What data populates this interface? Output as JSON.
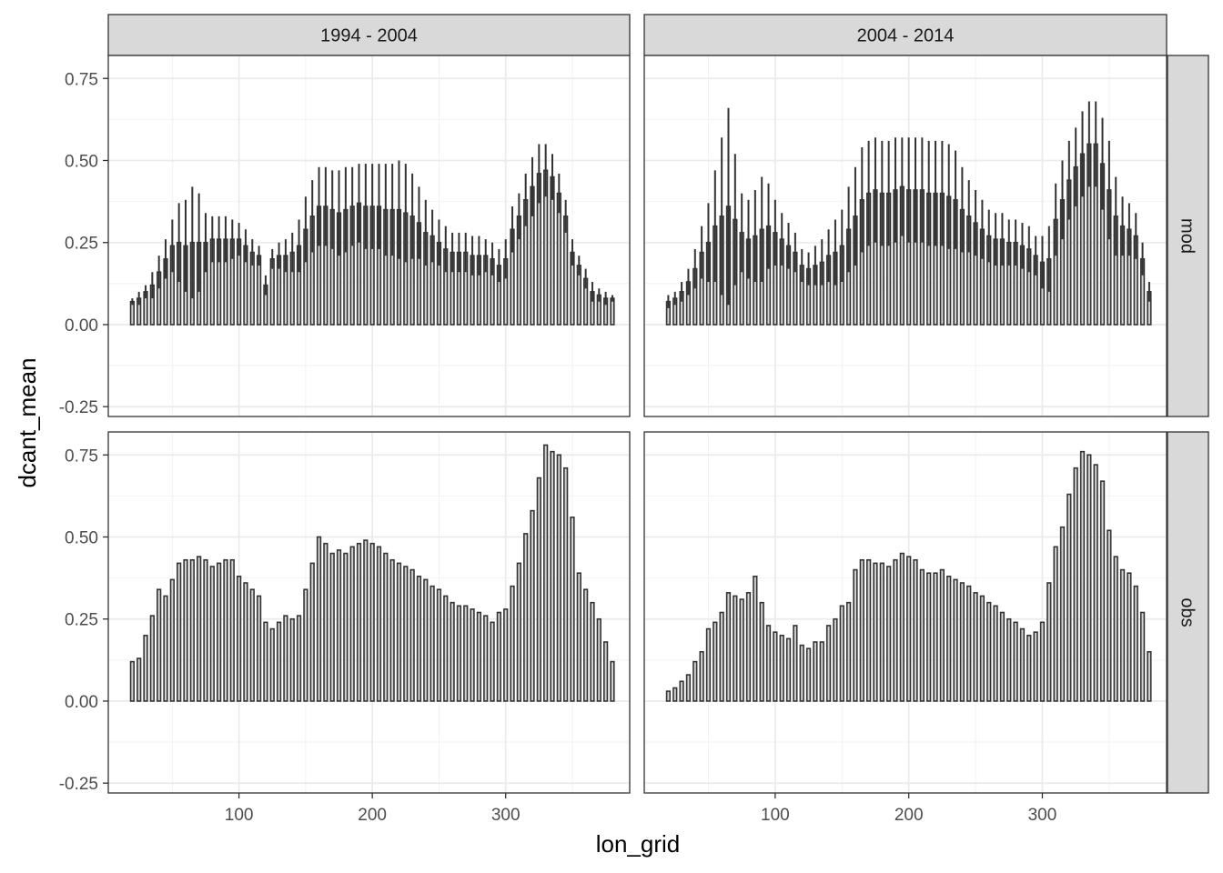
{
  "chart_data": {
    "type": "bar",
    "layout": "facet_grid",
    "xlabel": "lon_grid",
    "ylabel": "dcant_mean",
    "ylim": [
      -0.28,
      0.82
    ],
    "xlim": [
      2,
      393
    ],
    "x_ticks": [
      100,
      200,
      300
    ],
    "x_tick_labels": [
      "100",
      "200",
      "300"
    ],
    "y_ticks": [
      -0.25,
      0,
      0.25,
      0.5,
      0.75
    ],
    "y_tick_labels": [
      "-0.25",
      "0.00",
      "0.25",
      "0.50",
      "0.75"
    ],
    "grid": true,
    "bar_fill": "#d3d3d3",
    "bar_outline": "#333333",
    "strip_fill": "#d9d9d9",
    "column_facets": [
      "1994 - 2004",
      "2004 - 2014"
    ],
    "row_facets": [
      "mod",
      "obs"
    ],
    "x": [
      20,
      25,
      30,
      35,
      40,
      45,
      50,
      55,
      60,
      65,
      70,
      75,
      80,
      85,
      90,
      95,
      100,
      105,
      110,
      115,
      120,
      125,
      130,
      135,
      140,
      145,
      150,
      155,
      160,
      165,
      170,
      175,
      180,
      185,
      190,
      195,
      200,
      205,
      210,
      215,
      220,
      225,
      230,
      235,
      240,
      245,
      250,
      255,
      260,
      265,
      270,
      275,
      280,
      285,
      290,
      295,
      300,
      305,
      310,
      315,
      320,
      325,
      330,
      335,
      340,
      345,
      350,
      355,
      360,
      365,
      370,
      375,
      380
    ],
    "panels": [
      {
        "column": "1994 - 2004",
        "row": "mod",
        "values": [
          0.07,
          0.08,
          0.1,
          0.12,
          0.16,
          0.2,
          0.24,
          0.25,
          0.24,
          0.25,
          0.25,
          0.25,
          0.26,
          0.26,
          0.26,
          0.26,
          0.26,
          0.24,
          0.22,
          0.21,
          0.12,
          0.2,
          0.21,
          0.21,
          0.22,
          0.24,
          0.29,
          0.33,
          0.36,
          0.36,
          0.35,
          0.34,
          0.35,
          0.36,
          0.37,
          0.36,
          0.36,
          0.36,
          0.35,
          0.35,
          0.35,
          0.34,
          0.33,
          0.31,
          0.28,
          0.27,
          0.25,
          0.23,
          0.22,
          0.22,
          0.22,
          0.21,
          0.21,
          0.21,
          0.2,
          0.18,
          0.2,
          0.29,
          0.33,
          0.38,
          0.42,
          0.46,
          0.47,
          0.45,
          0.4,
          0.33,
          0.22,
          0.18,
          0.14,
          0.1,
          0.09,
          0.08,
          0.08
        ],
        "errors": [
          0.01,
          0.02,
          0.02,
          0.04,
          0.05,
          0.06,
          0.08,
          0.12,
          0.14,
          0.17,
          0.15,
          0.09,
          0.07,
          0.07,
          0.07,
          0.06,
          0.05,
          0.05,
          0.04,
          0.03,
          0.03,
          0.03,
          0.04,
          0.05,
          0.06,
          0.08,
          0.1,
          0.11,
          0.12,
          0.12,
          0.12,
          0.13,
          0.13,
          0.12,
          0.12,
          0.13,
          0.13,
          0.13,
          0.14,
          0.14,
          0.15,
          0.15,
          0.13,
          0.11,
          0.1,
          0.08,
          0.07,
          0.07,
          0.06,
          0.06,
          0.06,
          0.06,
          0.06,
          0.05,
          0.05,
          0.05,
          0.06,
          0.07,
          0.07,
          0.08,
          0.09,
          0.09,
          0.08,
          0.07,
          0.06,
          0.05,
          0.04,
          0.03,
          0.03,
          0.03,
          0.02,
          0.02,
          0.01
        ]
      },
      {
        "column": "2004 - 2014",
        "row": "mod",
        "values": [
          0.07,
          0.08,
          0.1,
          0.13,
          0.17,
          0.22,
          0.25,
          0.3,
          0.33,
          0.36,
          0.32,
          0.28,
          0.26,
          0.27,
          0.29,
          0.3,
          0.28,
          0.26,
          0.24,
          0.22,
          0.18,
          0.17,
          0.18,
          0.19,
          0.21,
          0.22,
          0.24,
          0.29,
          0.33,
          0.38,
          0.4,
          0.41,
          0.4,
          0.4,
          0.41,
          0.42,
          0.41,
          0.41,
          0.41,
          0.4,
          0.4,
          0.4,
          0.39,
          0.38,
          0.35,
          0.33,
          0.31,
          0.29,
          0.27,
          0.26,
          0.26,
          0.25,
          0.25,
          0.24,
          0.23,
          0.21,
          0.19,
          0.2,
          0.32,
          0.38,
          0.44,
          0.48,
          0.52,
          0.55,
          0.55,
          0.49,
          0.41,
          0.33,
          0.3,
          0.29,
          0.27,
          0.2,
          0.1
        ],
        "errors": [
          0.02,
          0.02,
          0.03,
          0.04,
          0.06,
          0.08,
          0.12,
          0.17,
          0.24,
          0.3,
          0.2,
          0.12,
          0.12,
          0.14,
          0.16,
          0.13,
          0.1,
          0.08,
          0.07,
          0.06,
          0.05,
          0.05,
          0.06,
          0.07,
          0.08,
          0.1,
          0.11,
          0.13,
          0.15,
          0.16,
          0.16,
          0.16,
          0.16,
          0.16,
          0.16,
          0.15,
          0.16,
          0.16,
          0.16,
          0.16,
          0.16,
          0.16,
          0.16,
          0.15,
          0.13,
          0.11,
          0.1,
          0.09,
          0.08,
          0.08,
          0.08,
          0.07,
          0.07,
          0.07,
          0.07,
          0.06,
          0.08,
          0.1,
          0.11,
          0.12,
          0.12,
          0.12,
          0.13,
          0.13,
          0.13,
          0.14,
          0.15,
          0.12,
          0.09,
          0.08,
          0.07,
          0.05,
          0.03
        ]
      },
      {
        "column": "1994 - 2004",
        "row": "obs",
        "values": [
          0.12,
          0.13,
          0.2,
          0.26,
          0.34,
          0.32,
          0.37,
          0.42,
          0.43,
          0.43,
          0.44,
          0.43,
          0.41,
          0.42,
          0.43,
          0.43,
          0.38,
          0.36,
          0.34,
          0.32,
          0.24,
          0.22,
          0.24,
          0.26,
          0.25,
          0.26,
          0.34,
          0.42,
          0.5,
          0.48,
          0.45,
          0.46,
          0.45,
          0.47,
          0.48,
          0.49,
          0.48,
          0.47,
          0.45,
          0.43,
          0.42,
          0.41,
          0.4,
          0.38,
          0.37,
          0.35,
          0.34,
          0.32,
          0.3,
          0.29,
          0.29,
          0.28,
          0.27,
          0.26,
          0.24,
          0.27,
          0.28,
          0.35,
          0.42,
          0.51,
          0.58,
          0.68,
          0.78,
          0.76,
          0.75,
          0.71,
          0.56,
          0.39,
          0.34,
          0.3,
          0.25,
          0.18,
          0.12
        ]
      },
      {
        "column": "2004 - 2014",
        "row": "obs",
        "values": [
          0.03,
          0.04,
          0.06,
          0.08,
          0.12,
          0.15,
          0.22,
          0.24,
          0.27,
          0.33,
          0.32,
          0.31,
          0.33,
          0.38,
          0.3,
          0.23,
          0.21,
          0.2,
          0.19,
          0.23,
          0.17,
          0.16,
          0.18,
          0.18,
          0.23,
          0.25,
          0.29,
          0.3,
          0.4,
          0.43,
          0.43,
          0.42,
          0.42,
          0.41,
          0.43,
          0.45,
          0.44,
          0.43,
          0.4,
          0.39,
          0.39,
          0.4,
          0.38,
          0.37,
          0.36,
          0.35,
          0.33,
          0.32,
          0.3,
          0.29,
          0.27,
          0.25,
          0.24,
          0.22,
          0.2,
          0.21,
          0.24,
          0.36,
          0.47,
          0.53,
          0.63,
          0.71,
          0.76,
          0.75,
          0.72,
          0.67,
          0.52,
          0.44,
          0.4,
          0.39,
          0.35,
          0.27,
          0.15
        ]
      }
    ]
  }
}
